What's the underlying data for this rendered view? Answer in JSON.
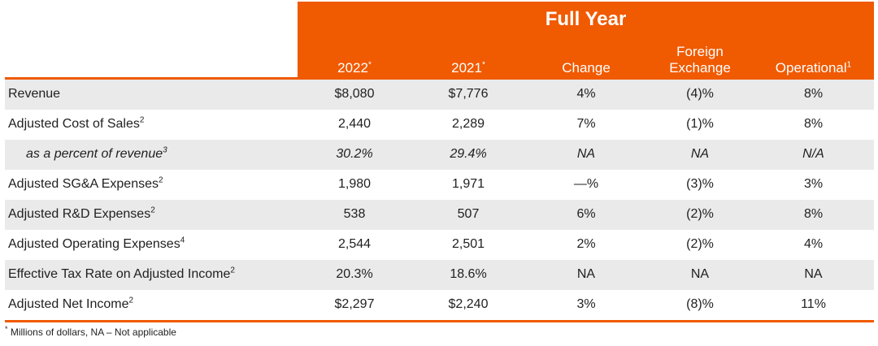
{
  "header": {
    "title": "Full Year",
    "columns": [
      {
        "label": "2022",
        "sup": "*"
      },
      {
        "label": "2021",
        "sup": "*"
      },
      {
        "label": "Change",
        "sup": ""
      },
      {
        "label_line1": "Foreign",
        "label_line2": "Exchange",
        "sup": ""
      },
      {
        "label": "Operational",
        "sup": "1"
      }
    ]
  },
  "rows": [
    {
      "label": "Revenue",
      "sup": "",
      "values": [
        "$8,080",
        "$7,776",
        "4%",
        "(4)%",
        "8%"
      ]
    },
    {
      "label": "Adjusted Cost of Sales",
      "sup": "2",
      "values": [
        "2,440",
        "2,289",
        "7%",
        "(1)%",
        "8%"
      ]
    },
    {
      "label": "as a percent of revenue",
      "sup": "3",
      "values": [
        "30.2%",
        "29.4%",
        "NA",
        "NA",
        "N/A"
      ]
    },
    {
      "label": "Adjusted SG&A Expenses",
      "sup": "2",
      "values": [
        "1,980",
        "1,971",
        "—%",
        "(3)%",
        "3%"
      ]
    },
    {
      "label": "Adjusted R&D Expenses",
      "sup": "2",
      "values": [
        "538",
        "507",
        "6%",
        "(2)%",
        "8%"
      ]
    },
    {
      "label": "Adjusted Operating Expenses",
      "sup": "4",
      "values": [
        "2,544",
        "2,501",
        "2%",
        "(2)%",
        "4%"
      ]
    },
    {
      "label": "Effective Tax Rate on Adjusted Income",
      "sup": "2",
      "values": [
        "20.3%",
        "18.6%",
        "NA",
        "NA",
        "NA"
      ]
    },
    {
      "label": "Adjusted Net Income",
      "sup": "2",
      "values": [
        "$2,297",
        "$2,240",
        "3%",
        "(8)%",
        "11%"
      ]
    }
  ],
  "footnote": {
    "sup": "*",
    "text": " Millions of dollars,  NA – Not applicable"
  },
  "colors": {
    "accent": "#f05a00",
    "shaded_row": "#eaeaea"
  }
}
